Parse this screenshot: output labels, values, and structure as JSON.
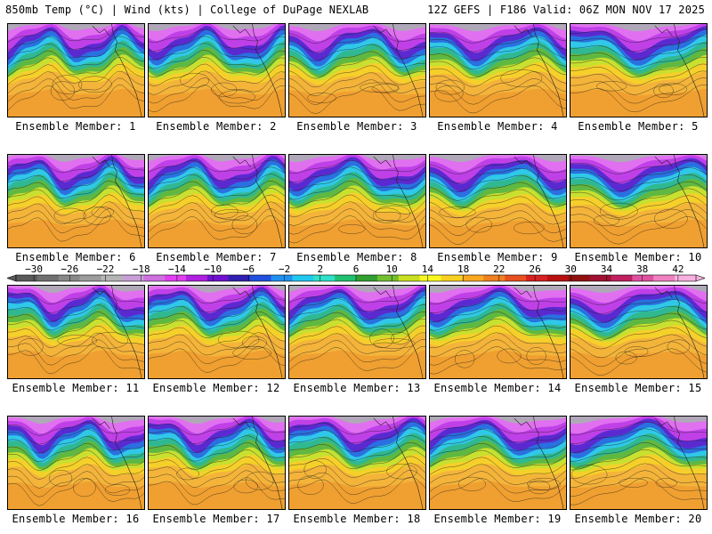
{
  "header": {
    "left_title": "850mb Temp (°C) | Wind (kts) | College of DuPage NEXLAB",
    "right_title": "12Z GEFS | F186 Valid: 06Z MON NOV 17 2025"
  },
  "members": [
    {
      "label": "Ensemble Member: 1"
    },
    {
      "label": "Ensemble Member: 2"
    },
    {
      "label": "Ensemble Member: 3"
    },
    {
      "label": "Ensemble Member: 4"
    },
    {
      "label": "Ensemble Member: 5"
    },
    {
      "label": "Ensemble Member: 6"
    },
    {
      "label": "Ensemble Member: 7"
    },
    {
      "label": "Ensemble Member: 8"
    },
    {
      "label": "Ensemble Member: 9"
    },
    {
      "label": "Ensemble Member: 10"
    },
    {
      "label": "Ensemble Member: 11"
    },
    {
      "label": "Ensemble Member: 12"
    },
    {
      "label": "Ensemble Member: 13"
    },
    {
      "label": "Ensemble Member: 14"
    },
    {
      "label": "Ensemble Member: 15"
    },
    {
      "label": "Ensemble Member: 16"
    },
    {
      "label": "Ensemble Member: 17"
    },
    {
      "label": "Ensemble Member: 18"
    },
    {
      "label": "Ensemble Member: 19"
    },
    {
      "label": "Ensemble Member: 20"
    }
  ],
  "colorbar": {
    "unit": "°C",
    "min": -32,
    "max": 44,
    "ticks": [
      "−30",
      "−26",
      "−22",
      "−18",
      "−14",
      "−10",
      "−6",
      "−2",
      "2",
      "6",
      "10",
      "14",
      "18",
      "22",
      "26",
      "30",
      "34",
      "38",
      "42"
    ],
    "colors": [
      "#5a5a5a",
      "#707070",
      "#888888",
      "#9c9c9c",
      "#b4b4b4",
      "#c8a0d8",
      "#d070e0",
      "#e040f0",
      "#b020e0",
      "#7010d0",
      "#3020b0",
      "#2050e0",
      "#2090f0",
      "#20c8f0",
      "#30e0c8",
      "#20c070",
      "#30a030",
      "#70c030",
      "#c8e020",
      "#f8f820",
      "#f8d020",
      "#f8a820",
      "#f08020",
      "#e85020",
      "#d82020",
      "#b81010",
      "#901010",
      "#a01030",
      "#c02060",
      "#e050a0",
      "#f080c0",
      "#f8b0e0"
    ]
  }
}
